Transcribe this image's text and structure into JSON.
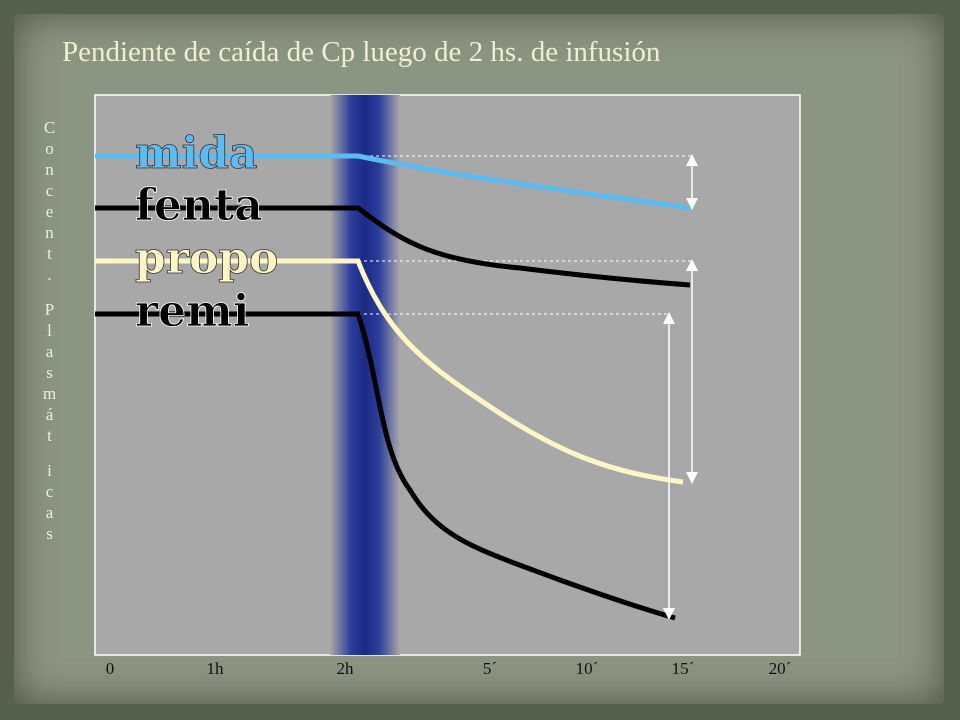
{
  "title": "Pendiente de caída de Cp luego de 2 hs. de infusión",
  "y_axis_label": [
    "Concent.",
    "Plasmát",
    "icas"
  ],
  "x_axis_labels": [
    "0",
    "1h",
    "2h",
    "5´",
    "10´",
    "15´",
    "20´"
  ],
  "curves": [
    {
      "label": "mida",
      "color": "#5bbcf2"
    },
    {
      "label": "fenta",
      "color": "#000000"
    },
    {
      "label": "propo",
      "color": "#fff6c4"
    },
    {
      "label": "remi",
      "color": "#000000"
    }
  ]
}
